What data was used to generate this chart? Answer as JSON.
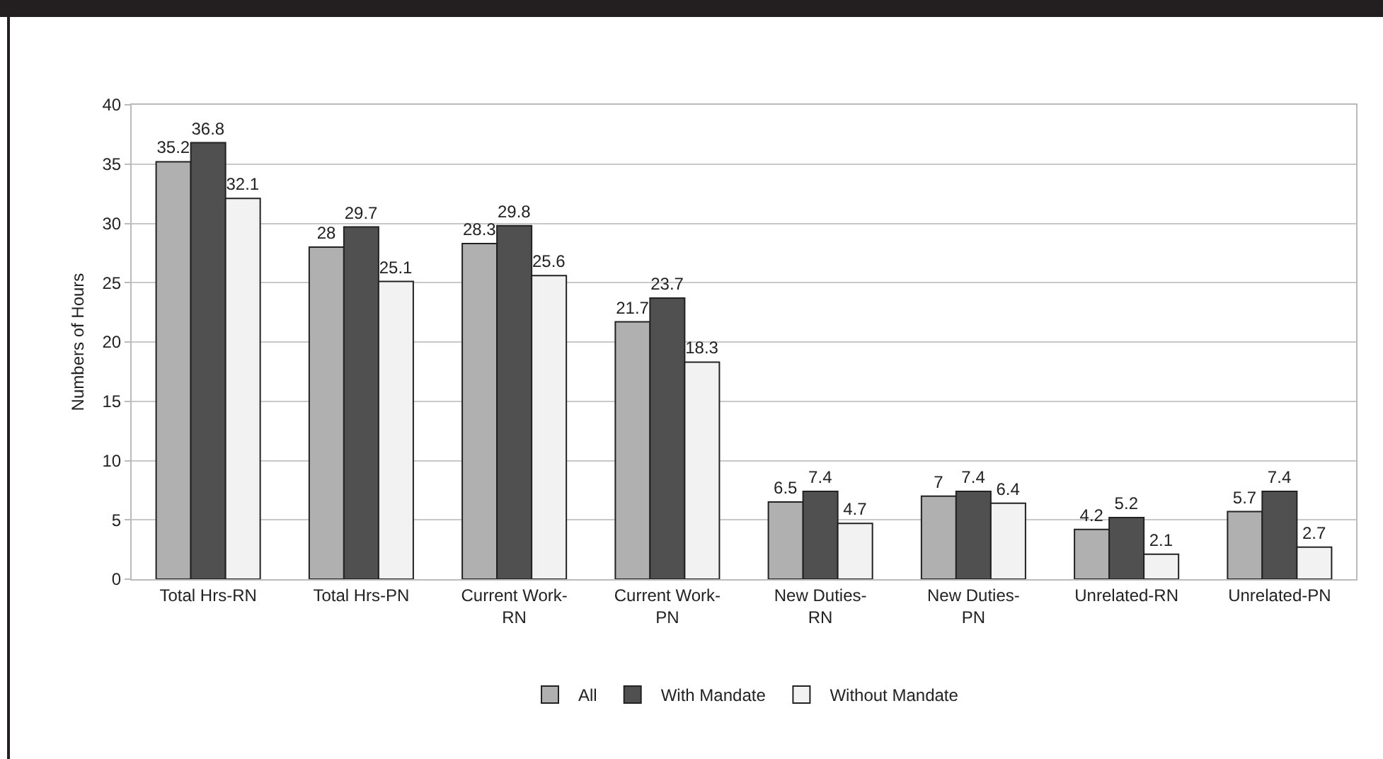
{
  "chart_data": {
    "type": "bar",
    "ylabel": "Numbers of Hours",
    "categories": [
      "Total Hrs-RN",
      "Total Hrs-PN",
      "Current Work-\nRN",
      "Current Work-\nPN",
      "New Duties-\nRN",
      "New Duties-\nPN",
      "Unrelated-RN",
      "Unrelated-PN"
    ],
    "series": [
      {
        "name": "All",
        "color": "#b0b0b0",
        "values": [
          35.2,
          28,
          28.3,
          21.7,
          6.5,
          7,
          4.2,
          5.7
        ]
      },
      {
        "name": "With Mandate",
        "color": "#505050",
        "values": [
          36.8,
          29.7,
          29.8,
          23.7,
          7.4,
          7.4,
          5.2,
          7.4
        ]
      },
      {
        "name": "Without Mandate",
        "color": "#f2f2f2",
        "values": [
          32.1,
          25.1,
          25.6,
          18.3,
          4.7,
          6.4,
          2.1,
          2.7
        ]
      }
    ],
    "ylim": [
      0,
      40
    ],
    "yticks": [
      0,
      5,
      10,
      15,
      20,
      25,
      30,
      35,
      40
    ],
    "grid": "y",
    "legend": "bottom",
    "data_labels": true
  }
}
